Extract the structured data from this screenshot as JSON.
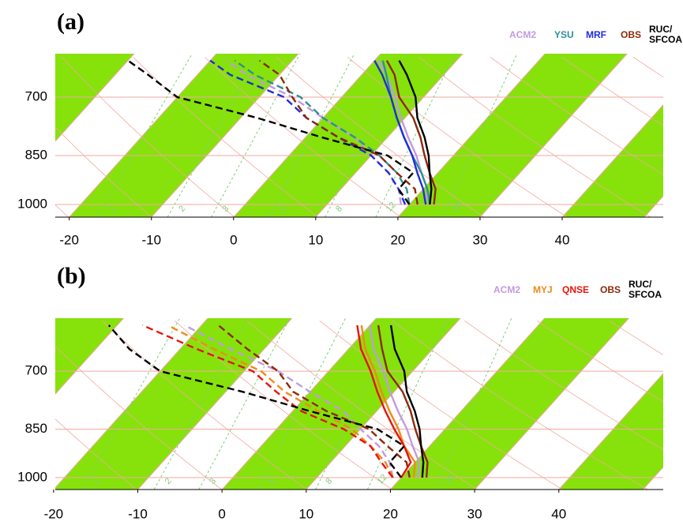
{
  "chart_data": [
    {
      "type": "skewt",
      "label": "(a)",
      "ylog": true,
      "ylim": [
        1043,
        606
      ],
      "yticks": [
        700,
        850,
        1000
      ],
      "xlim": [
        -21.7,
        52.3
      ],
      "xticks": [
        -20,
        -10,
        0,
        10,
        20,
        30,
        40
      ],
      "mixing_ratios": [
        1,
        2,
        3,
        5,
        8,
        12,
        20
      ],
      "levels": [
        1000,
        950,
        900,
        850,
        800,
        750,
        700,
        650,
        620
      ],
      "series": [
        {
          "name": "ACM2",
          "color": "#c29ae0",
          "temperature": [
            22,
            20.5,
            18,
            15.5,
            12.5,
            9.5,
            6.5,
            3,
            0.5
          ],
          "dewpoint": [
            19,
            17,
            14,
            10,
            6,
            0,
            -6,
            -14,
            -18
          ]
        },
        {
          "name": "YSU",
          "color": "#2f8f95",
          "temperature": [
            22.5,
            20.5,
            18,
            15,
            12,
            9,
            6,
            3,
            1
          ],
          "dewpoint": [
            20,
            18,
            15,
            11,
            6,
            0,
            -5,
            -13,
            -17
          ]
        },
        {
          "name": "MRF",
          "color": "#1f2fd8",
          "temperature": [
            22,
            20,
            17.5,
            15,
            12,
            9,
            6,
            2.5,
            0
          ],
          "dewpoint": [
            19.5,
            17,
            14,
            10,
            4,
            -2,
            -7,
            -16,
            -20
          ]
        },
        {
          "name": "OBS",
          "color": "#8b2a0a",
          "temperature": [
            23,
            21.5,
            19,
            16.5,
            14,
            11,
            7,
            4,
            1.5
          ],
          "dewpoint": [
            21,
            19,
            15,
            11,
            4,
            -2,
            -6,
            -10,
            -14
          ]
        },
        {
          "name": "RUC/\nSFCOA",
          "color": "#000000",
          "temperature": [
            22.5,
            21,
            19,
            17,
            14.5,
            11.5,
            9,
            5.5,
            3
          ],
          "dewpoint": [
            20,
            17,
            17,
            12,
            2,
            -8,
            -20,
            -26,
            -30
          ]
        }
      ]
    },
    {
      "type": "skewt",
      "label": "(b)",
      "ylog": true,
      "ylim": [
        1041,
        586
      ],
      "yticks": [
        700,
        850,
        1000
      ],
      "xlim": [
        -19.8,
        52.4
      ],
      "xticks": [
        -20,
        -10,
        0,
        10,
        20,
        30,
        40
      ],
      "mixing_ratios": [
        1,
        2,
        3,
        5,
        8,
        12,
        20
      ],
      "levels": [
        1000,
        950,
        900,
        850,
        800,
        750,
        700,
        650,
        600
      ],
      "series": [
        {
          "name": "ACM2",
          "color": "#c29ae0",
          "temperature": [
            22,
            20.5,
            18,
            15.5,
            12.5,
            9.5,
            6.5,
            3,
            0
          ],
          "dewpoint": [
            19,
            17,
            14,
            10,
            6,
            0,
            -6,
            -14,
            -22
          ]
        },
        {
          "name": "MYJ",
          "color": "#f08a1c",
          "temperature": [
            21.5,
            20,
            17,
            14.5,
            11.5,
            8.5,
            5.5,
            2,
            -1
          ],
          "dewpoint": [
            19,
            16.5,
            13,
            9,
            3,
            -3,
            -8,
            -16,
            -24
          ]
        },
        {
          "name": "QNSE",
          "color": "#e8140c",
          "temperature": [
            20,
            19.5,
            17,
            14,
            11,
            8,
            5,
            1.5,
            -1.5
          ],
          "dewpoint": [
            19,
            16,
            13,
            8,
            1,
            -4,
            -9,
            -18,
            -27
          ]
        },
        {
          "name": "OBS",
          "color": "#8b2a0a",
          "temperature": [
            23,
            21.5,
            19,
            16.5,
            14,
            11,
            7,
            4,
            1
          ],
          "dewpoint": [
            21,
            19,
            15,
            11,
            4,
            -2,
            -6,
            -12,
            -18
          ]
        },
        {
          "name": "RUC/\nSFCOA",
          "color": "#000000",
          "temperature": [
            22.5,
            21,
            19,
            17,
            14.5,
            11.5,
            9,
            5.5,
            2.5
          ],
          "dewpoint": [
            20,
            17,
            17,
            12,
            2,
            -8,
            -20,
            -26,
            -31
          ]
        }
      ]
    }
  ]
}
